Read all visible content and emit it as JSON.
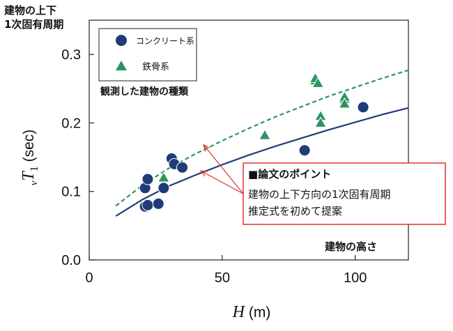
{
  "chart_data": {
    "type": "scatter",
    "title": "建物の上下\n1次固有周期",
    "title_lines": [
      "建物の上下",
      "1次固有周期"
    ],
    "xlabel": "H (m)",
    "xlabel_var": "H",
    "xlabel_unit": " (m)",
    "ylabel": "vT1 (sec)",
    "ylabel_pre": "v",
    "ylabel_var": "T",
    "ylabel_sub": "1",
    "ylabel_unit": " (sec)",
    "xlim": [
      0,
      120
    ],
    "ylim": [
      0.0,
      0.35
    ],
    "xticks": [
      0,
      50,
      100
    ],
    "xtick_labels": [
      "0",
      "50",
      "100"
    ],
    "yticks": [
      0.0,
      0.1,
      0.2,
      0.3
    ],
    "ytick_labels": [
      "0.0",
      "0.1",
      "0.2",
      "0.3"
    ],
    "x_axis_note": "建物の高さ",
    "series": [
      {
        "name": "コンクリート系",
        "marker": "circle",
        "color": "#1f3c78",
        "points": [
          [
            21,
            0.105
          ],
          [
            22,
            0.118
          ],
          [
            21,
            0.078
          ],
          [
            22,
            0.08
          ],
          [
            26,
            0.082
          ],
          [
            28,
            0.105
          ],
          [
            31,
            0.148
          ],
          [
            32,
            0.14
          ],
          [
            35,
            0.135
          ],
          [
            81,
            0.16
          ],
          [
            103,
            0.223
          ]
        ]
      },
      {
        "name": "鉄骨系",
        "marker": "triangle",
        "color": "#2e9464",
        "points": [
          [
            28,
            0.12
          ],
          [
            66,
            0.182
          ],
          [
            85,
            0.262
          ],
          [
            85,
            0.265
          ],
          [
            86,
            0.258
          ],
          [
            87,
            0.21
          ],
          [
            87,
            0.2
          ],
          [
            96,
            0.235
          ],
          [
            96,
            0.238
          ],
          [
            96,
            0.228
          ]
        ]
      },
      {
        "name": "コンクリート系 推定式",
        "type": "line",
        "style": "solid",
        "color": "#1f3c78",
        "points": [
          [
            10,
            0.064
          ],
          [
            20,
            0.088
          ],
          [
            30,
            0.108
          ],
          [
            40,
            0.124
          ],
          [
            50,
            0.139
          ],
          [
            60,
            0.153
          ],
          [
            70,
            0.166
          ],
          [
            80,
            0.178
          ],
          [
            90,
            0.19
          ],
          [
            100,
            0.201
          ],
          [
            110,
            0.212
          ],
          [
            120,
            0.222
          ]
        ]
      },
      {
        "name": "鉄骨系 推定式",
        "type": "line",
        "style": "dashed",
        "color": "#2e9464",
        "points": [
          [
            10,
            0.079
          ],
          [
            20,
            0.109
          ],
          [
            30,
            0.134
          ],
          [
            40,
            0.155
          ],
          [
            50,
            0.174
          ],
          [
            60,
            0.192
          ],
          [
            70,
            0.209
          ],
          [
            80,
            0.224
          ],
          [
            90,
            0.239
          ],
          [
            100,
            0.252
          ],
          [
            110,
            0.265
          ],
          [
            120,
            0.277
          ]
        ]
      }
    ],
    "legend": {
      "title": "観測した建物の種類",
      "entries": [
        "コンクリート系",
        "鉄骨系"
      ],
      "placement": "top-left"
    },
    "annotation": {
      "heading_mark": "■",
      "heading": "論文のポイント",
      "lines": [
        "建物の上下方向の1次固有周期",
        "推定式を初めて提案"
      ],
      "box_color": "#e03030",
      "arrow_color": "#e03030",
      "arrow_targets": [
        [
          43,
          0.168
        ],
        [
          42,
          0.13
        ]
      ]
    }
  }
}
